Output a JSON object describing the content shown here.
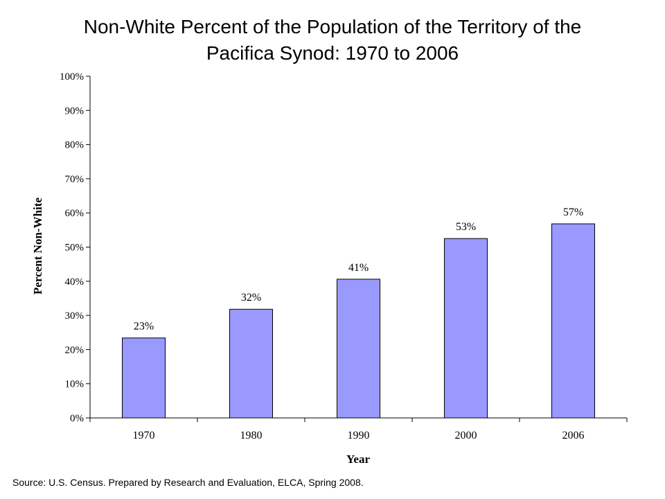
{
  "chart_data": {
    "type": "bar",
    "title_line1": "Non-White Percent of the Population of the Territory of the",
    "title_line2": "Pacifica Synod:  1970 to 2006",
    "xlabel": "Year",
    "ylabel": "Percent Non-White",
    "categories": [
      "1970",
      "1980",
      "1990",
      "2000",
      "2006"
    ],
    "values": [
      23.4,
      31.8,
      40.6,
      52.5,
      56.8
    ],
    "data_labels": [
      "23%",
      "32%",
      "41%",
      "53%",
      "57%"
    ],
    "ylim": [
      0,
      100
    ],
    "yticks": [
      0,
      10,
      20,
      30,
      40,
      50,
      60,
      70,
      80,
      90,
      100
    ],
    "ytick_labels": [
      "0%",
      "10%",
      "20%",
      "30%",
      "40%",
      "50%",
      "60%",
      "70%",
      "80%",
      "90%",
      "100%"
    ],
    "grid": false,
    "legend": "none",
    "bar_color": "#9999ff"
  },
  "source": "Source:  U.S. Census.  Prepared by Research and Evaluation, ELCA, Spring 2008."
}
